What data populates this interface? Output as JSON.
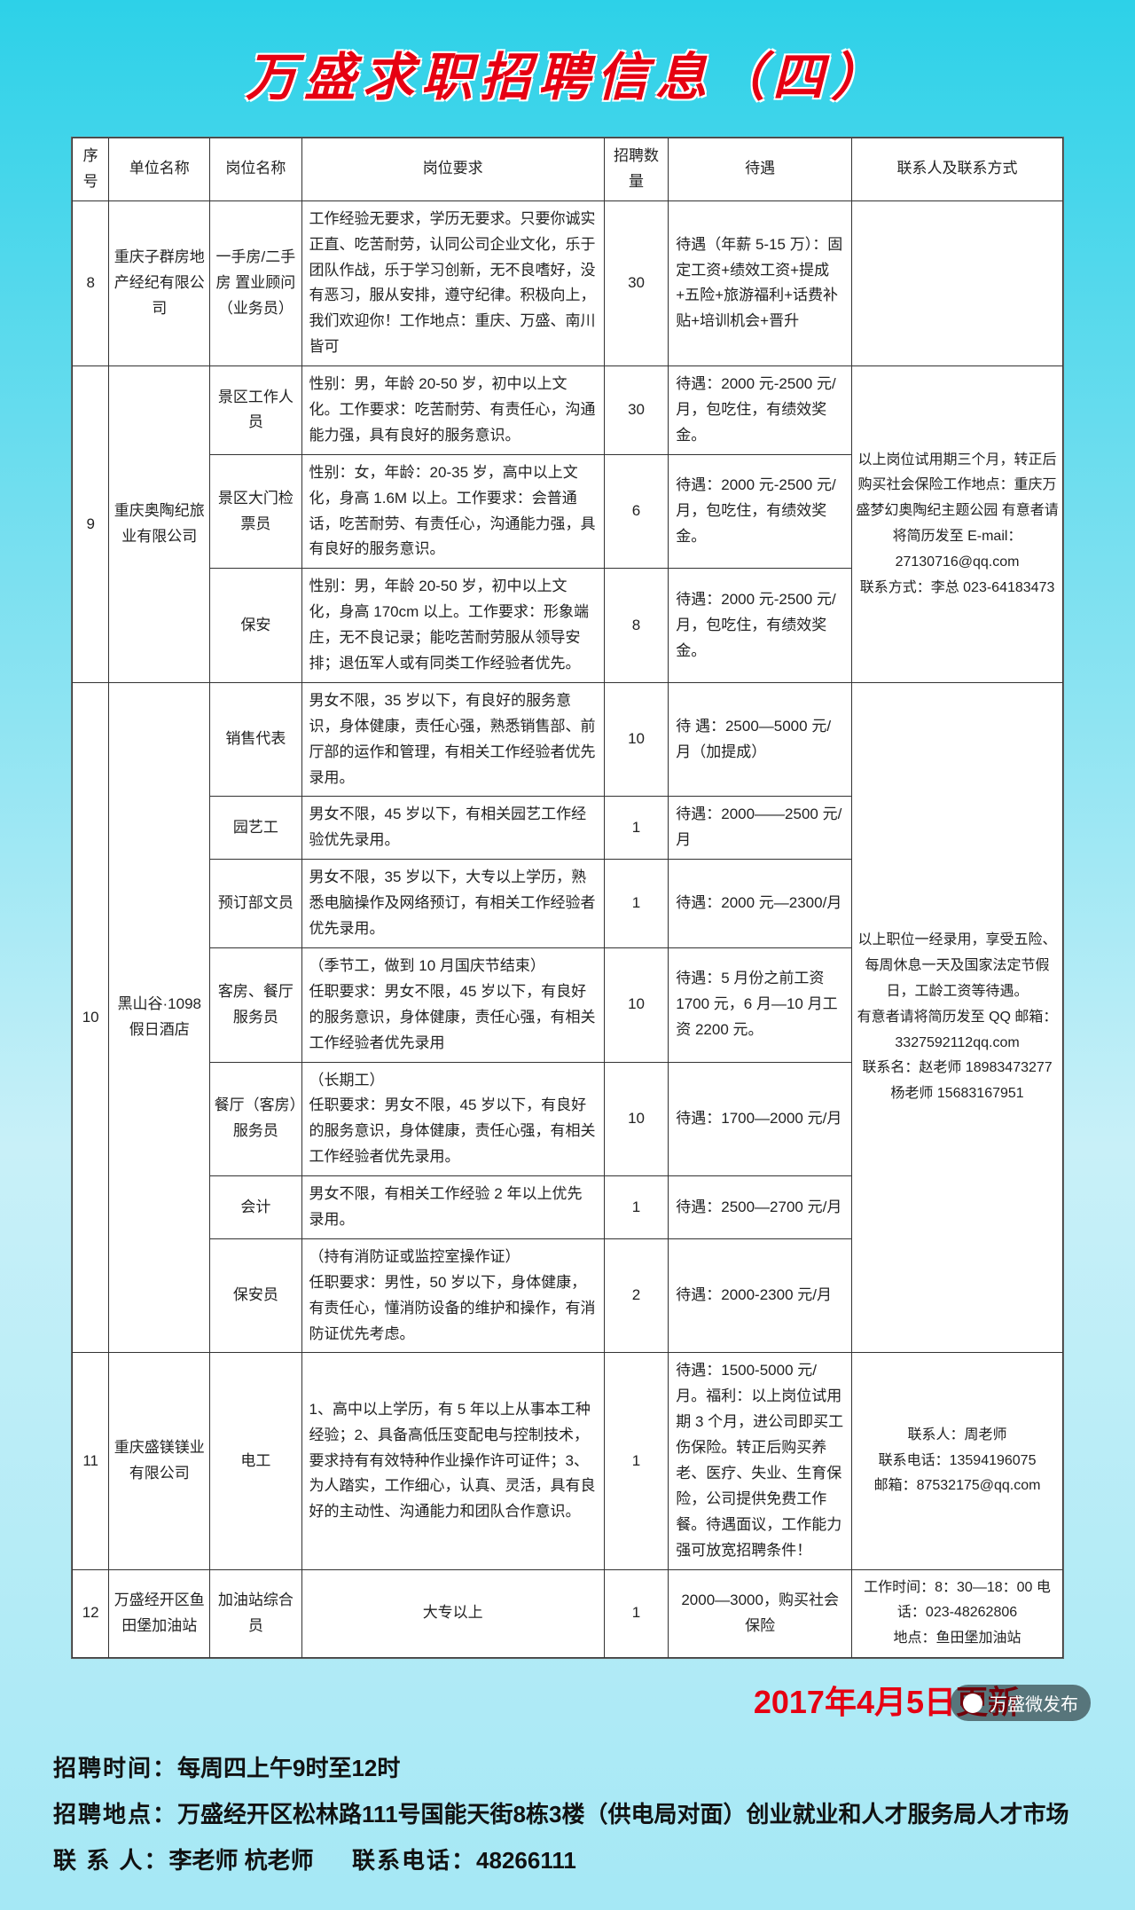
{
  "title": "万盛求职招聘信息（四）",
  "headers": {
    "seq": "序号",
    "company": "单位名称",
    "position": "岗位名称",
    "requirement": "岗位要求",
    "count": "招聘数量",
    "treatment": "待遇",
    "contact": "联系人及联系方式"
  },
  "rows": {
    "r8": {
      "seq": "8",
      "company": "重庆子群房地产经纪有限公司",
      "position": "一手房/二手房 置业顾问（业务员）",
      "req": "工作经验无要求，学历无要求。只要你诚实正直、吃苦耐劳，认同公司企业文化，乐于团队作战，乐于学习创新，无不良嗜好，没有恶习，服从安排，遵守纪律。积极向上，我们欢迎你！工作地点：重庆、万盛、南川皆可",
      "count": "30",
      "treat": "待遇（年薪 5-15 万）：固定工资+绩效工资+提成+五险+旅游福利+话费补贴+培训机会+晋升",
      "contact": ""
    },
    "r9a": {
      "position": "景区工作人员",
      "req": "性别：男，年龄 20-50 岁，初中以上文化。工作要求：吃苦耐劳、有责任心，沟通能力强，具有良好的服务意识。",
      "count": "30",
      "treat": "待遇：2000 元-2500 元/月，包吃住，有绩效奖金。"
    },
    "r9": {
      "seq": "9",
      "company": "重庆奥陶纪旅业有限公司",
      "position": "景区大门检票员",
      "req": "性别：女，年龄：20-35 岁，高中以上文化，身高 1.6M 以上。工作要求：会普通话，吃苦耐劳、有责任心，沟通能力强，具有良好的服务意识。",
      "count": "6",
      "treat": "待遇：2000 元-2500 元/月，包吃住，有绩效奖金。",
      "contact": "以上岗位试用期三个月，转正后购买社会保险工作地点：重庆万盛梦幻奥陶纪主题公园 有意者请将简历发至 E-mail：27130716@qq.com\n联系方式：李总 023-64183473"
    },
    "r9c": {
      "position": "保安",
      "req": "性别：男，年龄 20-50 岁，初中以上文化，身高 170cm 以上。工作要求：形象端庄，无不良记录；能吃苦耐劳服从领导安排；退伍军人或有同类工作经验者优先。",
      "count": "8",
      "treat": "待遇：2000 元-2500 元/月，包吃住，有绩效奖金。"
    },
    "r10a": {
      "position": "销售代表",
      "req": "男女不限，35 岁以下，有良好的服务意识，身体健康，责任心强，熟悉销售部、前厅部的运作和管理，有相关工作经验者优先录用。",
      "count": "10",
      "treat": "待  遇：2500—5000 元/月（加提成）"
    },
    "r10b": {
      "position": "园艺工",
      "req": "男女不限，45 岁以下，有相关园艺工作经验优先录用。",
      "count": "1",
      "treat": "待遇：2000——2500 元/月"
    },
    "r10c": {
      "position": "预订部文员",
      "req": "男女不限，35 岁以下，大专以上学历，熟悉电脑操作及网络预订，有相关工作经验者优先录用。",
      "count": "1",
      "treat": "待遇：2000 元—2300/月"
    },
    "r10": {
      "seq": "10",
      "company": "黑山谷·1098 假日酒店",
      "position": "客房、餐厅服务员",
      "req": "（季节工，做到 10 月国庆节结束）\n任职要求：男女不限，45 岁以下，有良好的服务意识，身体健康，责任心强，有相关工作经验者优先录用",
      "count": "10",
      "treat": "待遇：5 月份之前工资 1700 元，6 月—10 月工资 2200 元。",
      "contact": "以上职位一经录用，享受五险、每周休息一天及国家法定节假日，工龄工资等待遇。\n有意者请将简历发至 QQ 邮箱：3327592112qq.com\n联系名：赵老师 18983473277\n杨老师 15683167951"
    },
    "r10e": {
      "position": "餐厅（客房）服务员",
      "req": "（长期工）\n任职要求：男女不限，45 岁以下，有良好的服务意识，身体健康，责任心强，有相关工作经验者优先录用。",
      "count": "10",
      "treat": "待遇：1700—2000 元/月"
    },
    "r10f": {
      "position": "会计",
      "req": "男女不限，有相关工作经验 2 年以上优先录用。",
      "count": "1",
      "treat": "待遇：2500—2700 元/月"
    },
    "r10g": {
      "position": "保安员",
      "req": "（持有消防证或监控室操作证）\n任职要求：男性，50 岁以下，身体健康，有责任心，懂消防设备的维护和操作，有消防证优先考虑。",
      "count": "2",
      "treat": "待遇：2000-2300 元/月"
    },
    "r11": {
      "seq": "11",
      "company": "重庆盛镁镁业有限公司",
      "position": "电工",
      "req": "1、高中以上学历，有 5 年以上从事本工种经验；2、具备高低压变配电与控制技术，要求持有有效特种作业操作许可证件；3、为人踏实，工作细心，认真、灵活，具有良好的主动性、沟通能力和团队合作意识。",
      "count": "1",
      "treat": "待遇：1500-5000 元/月。福利：以上岗位试用期 3 个月，进公司即买工伤保险。转正后购买养老、医疗、失业、生育保险，公司提供免费工作餐。待遇面议，工作能力强可放宽招聘条件！",
      "contact": "联系人：周老师\n联系电话：13594196075\n邮箱：87532175@qq.com"
    },
    "r12": {
      "seq": "12",
      "company": "万盛经开区鱼田堡加油站",
      "position": "加油站综合员",
      "req": "大专以上",
      "count": "1",
      "treat": "2000—3000，购买社会保险",
      "contact": "工作时间：8：30—18：00 电话：023-48262806\n地点：鱼田堡加油站"
    }
  },
  "update": "2017年4月5日更新",
  "footer": {
    "time_label": "招聘时间：",
    "time": "每周四上午9时至12时",
    "addr_label": "招聘地点：",
    "addr": "万盛经开区松林路111号国能天街8栋3楼（供电局对面）创业就业和人才服务局人才市场",
    "person_label": "联 系 人：",
    "person": "李老师  杭老师",
    "phone_label": "联系电话：",
    "phone": "48266111"
  },
  "wx": "万盛微发布"
}
